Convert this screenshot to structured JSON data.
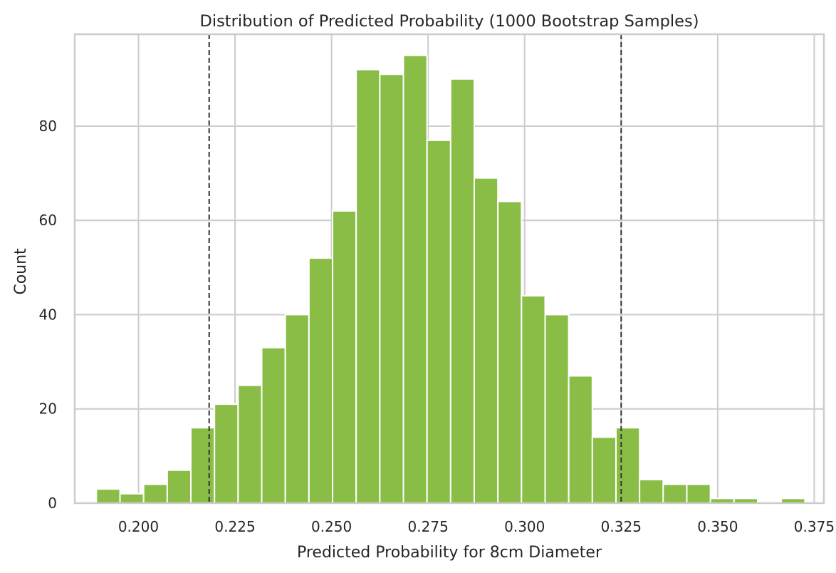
{
  "chart_data": {
    "type": "bar",
    "subtype": "histogram",
    "title": "Distribution of Predicted Probability (1000 Bootstrap Samples)",
    "xlabel": "Predicted Probability for 8cm Diameter",
    "ylabel": "Count",
    "xlim": [
      0.1835,
      0.3775
    ],
    "ylim": [
      0,
      99.5
    ],
    "xticks": [
      "0.200",
      "0.225",
      "0.250",
      "0.275",
      "0.300",
      "0.325",
      "0.350",
      "0.375"
    ],
    "xtick_values": [
      0.2,
      0.225,
      0.25,
      0.275,
      0.3,
      0.325,
      0.35,
      0.375
    ],
    "yticks": [
      "0",
      "20",
      "40",
      "60",
      "80"
    ],
    "ytick_values": [
      0,
      20,
      40,
      60,
      80
    ],
    "grid": true,
    "bar_color": "#89BD46",
    "bins": {
      "start": 0.1891,
      "width": 0.006116,
      "counts": [
        3,
        2,
        4,
        7,
        16,
        21,
        25,
        33,
        40,
        52,
        62,
        92,
        91,
        95,
        77,
        90,
        69,
        64,
        44,
        40,
        27,
        14,
        16,
        5,
        4,
        4,
        1,
        1,
        0,
        1
      ]
    },
    "reference_lines": [
      {
        "x": 0.2183,
        "style": "dashed",
        "color": "#333333"
      },
      {
        "x": 0.325,
        "style": "dashed",
        "color": "#333333"
      }
    ]
  }
}
